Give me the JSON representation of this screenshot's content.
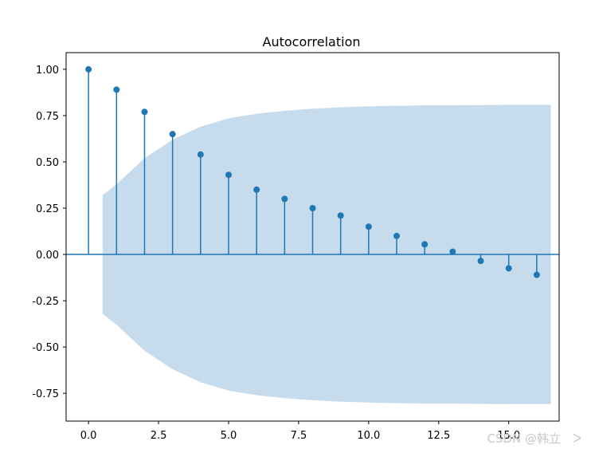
{
  "chart_data": {
    "type": "stem",
    "title": "Autocorrelation",
    "xlabel": "",
    "ylabel": "",
    "xlim": [
      -0.8,
      16.8
    ],
    "ylim": [
      -0.9,
      1.09
    ],
    "x_ticks": [
      0.0,
      2.5,
      5.0,
      7.5,
      10.0,
      12.5,
      15.0
    ],
    "x_tick_labels": [
      "0.0",
      "2.5",
      "5.0",
      "7.5",
      "10.0",
      "12.5",
      "15.0"
    ],
    "y_ticks": [
      1.0,
      0.75,
      0.5,
      0.25,
      0.0,
      -0.25,
      -0.5,
      -0.75
    ],
    "y_tick_labels": [
      "1.00",
      "0.75",
      "0.50",
      "0.25",
      "0.00",
      "-0.25",
      "-0.50",
      "-0.75"
    ],
    "lags": [
      0,
      1,
      2,
      3,
      4,
      5,
      6,
      7,
      8,
      9,
      10,
      11,
      12,
      13,
      14,
      15,
      16
    ],
    "values": [
      1.0,
      0.89,
      0.77,
      0.65,
      0.54,
      0.43,
      0.35,
      0.3,
      0.25,
      0.21,
      0.15,
      0.1,
      0.055,
      0.015,
      -0.035,
      -0.075,
      -0.11
    ],
    "confidence_band": {
      "x": [
        0.5,
        1,
        2,
        3,
        4,
        5,
        6,
        7,
        8,
        9,
        10,
        11,
        12,
        13,
        14,
        15,
        16,
        16.5
      ],
      "upper": [
        0.32,
        0.38,
        0.52,
        0.62,
        0.69,
        0.735,
        0.76,
        0.776,
        0.787,
        0.795,
        0.8,
        0.803,
        0.805,
        0.806,
        0.807,
        0.808,
        0.808,
        0.808
      ]
    },
    "grid": false,
    "legend": "none",
    "colors": {
      "stem": "#1f77b4",
      "band": "#c6dbec",
      "axis": "#000000"
    }
  },
  "watermark": "CSDN @韩立　ᐳ"
}
